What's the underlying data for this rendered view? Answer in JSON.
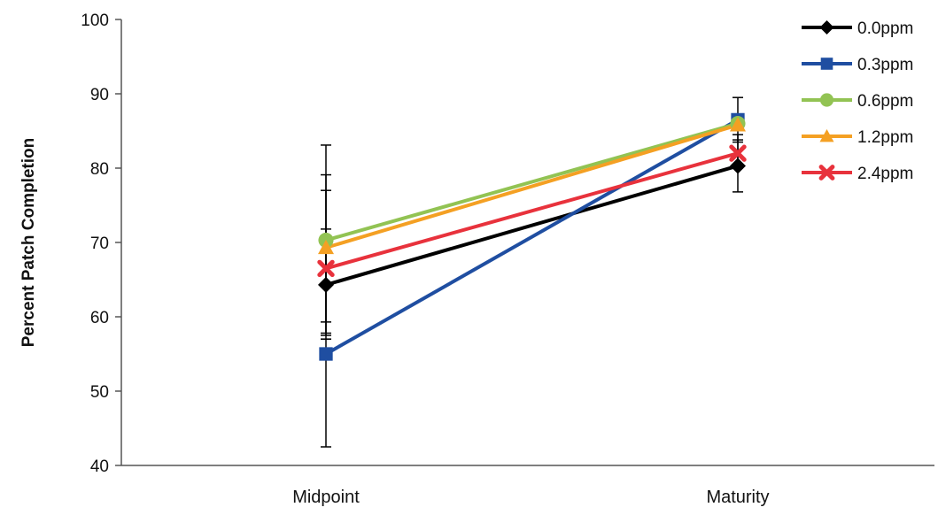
{
  "chart_data": {
    "type": "line",
    "title": "",
    "xlabel": "",
    "ylabel": "Percent Patch Completion",
    "ylim": [
      40,
      100
    ],
    "yticks": [
      40,
      50,
      60,
      70,
      80,
      90,
      100
    ],
    "categories": [
      "Midpoint",
      "Maturity"
    ],
    "grid": false,
    "legend_position": "top-right",
    "series": [
      {
        "name": "0.0ppm",
        "color": "#000000",
        "marker": "diamond",
        "values": [
          64.3,
          80.3
        ],
        "error": [
          [
            6.5,
            7.5
          ],
          [
            3.5,
            3.5
          ]
        ]
      },
      {
        "name": "0.3ppm",
        "color": "#1f4ea1",
        "marker": "square",
        "values": [
          55.0,
          86.5
        ],
        "error": [
          [
            12.5,
            2.0
          ],
          [
            3.0,
            3.0
          ]
        ]
      },
      {
        "name": "0.6ppm",
        "color": "#92c353",
        "marker": "circle",
        "values": [
          70.3,
          86.0
        ],
        "error": [
          [
            12.8,
            12.8
          ],
          [
            0.0,
            0.0
          ]
        ]
      },
      {
        "name": "1.2ppm",
        "color": "#f4a023",
        "marker": "triangle",
        "values": [
          69.3,
          85.8
        ],
        "error": [
          [
            10.0,
            9.8
          ],
          [
            0.0,
            0.0
          ]
        ]
      },
      {
        "name": "2.4ppm",
        "color": "#e8323c",
        "marker": "x",
        "values": [
          66.5,
          82.0
        ],
        "error": [
          [
            9.5,
            10.5
          ],
          [
            2.0,
            2.5
          ]
        ]
      }
    ]
  }
}
